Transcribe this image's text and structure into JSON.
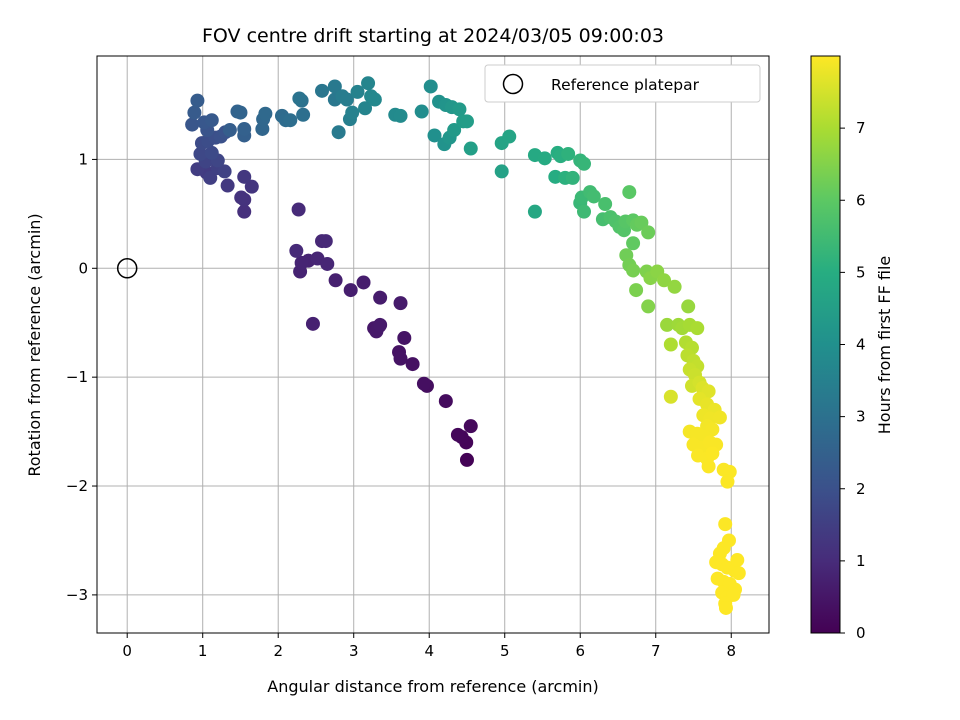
{
  "chart_data": {
    "type": "scatter",
    "title": "FOV centre drift starting at 2024/03/05 09:00:03",
    "xlabel": "Angular distance from reference (arcmin)",
    "ylabel": "Rotation from reference (arcmin)",
    "xlim": [
      -0.4,
      8.5
    ],
    "ylim": [
      -3.35,
      1.95
    ],
    "xticks": [
      0,
      1,
      2,
      3,
      4,
      5,
      6,
      7,
      8
    ],
    "yticks": [
      -3,
      -2,
      -1,
      0,
      1
    ],
    "xtick_labels": [
      "0",
      "1",
      "2",
      "3",
      "4",
      "5",
      "6",
      "7",
      "8"
    ],
    "ytick_labels": [
      "−3",
      "−2",
      "−1",
      "0",
      "1"
    ],
    "grid": true,
    "legend": {
      "label": "Reference platepar",
      "placement": "top-right"
    },
    "reference_point": {
      "x": 0,
      "y": 0
    },
    "colorbar": {
      "label": "Hours from first FF file",
      "colormap": "viridis",
      "range": [
        0,
        8
      ],
      "ticks": [
        0,
        1,
        2,
        3,
        4,
        5,
        6,
        7
      ],
      "tick_labels": [
        "0",
        "1",
        "2",
        "3",
        "4",
        "5",
        "6",
        "7"
      ]
    },
    "series": [
      {
        "points": [
          {
            "x": 4.5,
            "y": -1.76,
            "h": 0.05
          },
          {
            "x": 4.49,
            "y": -1.6,
            "h": 0.1
          },
          {
            "x": 4.43,
            "y": -1.55,
            "h": 0.12
          },
          {
            "x": 4.38,
            "y": -1.53,
            "h": 0.15
          },
          {
            "x": 4.55,
            "y": -1.45,
            "h": 0.18
          },
          {
            "x": 4.22,
            "y": -1.22,
            "h": 0.25
          },
          {
            "x": 3.97,
            "y": -1.08,
            "h": 0.3
          },
          {
            "x": 3.93,
            "y": -1.06,
            "h": 0.33
          },
          {
            "x": 3.78,
            "y": -0.88,
            "h": 0.38
          },
          {
            "x": 3.6,
            "y": -0.77,
            "h": 0.4
          },
          {
            "x": 3.62,
            "y": -0.83,
            "h": 0.42
          },
          {
            "x": 3.67,
            "y": -0.64,
            "h": 0.45
          },
          {
            "x": 3.34,
            "y": -0.53,
            "h": 0.5
          },
          {
            "x": 3.27,
            "y": -0.55,
            "h": 0.52
          },
          {
            "x": 3.3,
            "y": -0.58,
            "h": 0.55
          },
          {
            "x": 3.35,
            "y": -0.52,
            "h": 0.58
          },
          {
            "x": 3.62,
            "y": -0.32,
            "h": 0.6
          },
          {
            "x": 3.35,
            "y": -0.27,
            "h": 0.62
          },
          {
            "x": 3.13,
            "y": -0.13,
            "h": 0.65
          },
          {
            "x": 2.96,
            "y": -0.2,
            "h": 0.68
          },
          {
            "x": 2.76,
            "y": -0.11,
            "h": 0.72
          },
          {
            "x": 2.46,
            "y": -0.51,
            "h": 0.75
          },
          {
            "x": 2.29,
            "y": -0.03,
            "h": 0.78
          },
          {
            "x": 2.4,
            "y": 0.07,
            "h": 0.8
          },
          {
            "x": 2.31,
            "y": 0.05,
            "h": 0.82
          },
          {
            "x": 2.52,
            "y": 0.09,
            "h": 0.85
          },
          {
            "x": 2.65,
            "y": 0.04,
            "h": 0.88
          },
          {
            "x": 2.58,
            "y": 0.25,
            "h": 0.9
          },
          {
            "x": 2.63,
            "y": 0.25,
            "h": 0.92
          },
          {
            "x": 2.24,
            "y": 0.16,
            "h": 0.95
          },
          {
            "x": 2.27,
            "y": 0.54,
            "h": 0.98
          },
          {
            "x": 1.55,
            "y": 0.52,
            "h": 1.1
          },
          {
            "x": 1.55,
            "y": 0.63,
            "h": 1.15
          },
          {
            "x": 1.51,
            "y": 0.65,
            "h": 1.2
          },
          {
            "x": 1.65,
            "y": 0.75,
            "h": 1.25
          },
          {
            "x": 1.55,
            "y": 0.84,
            "h": 1.3
          },
          {
            "x": 1.33,
            "y": 0.76,
            "h": 1.35
          },
          {
            "x": 1.05,
            "y": 0.88,
            "h": 1.4
          },
          {
            "x": 0.93,
            "y": 0.91,
            "h": 1.45
          },
          {
            "x": 1.1,
            "y": 0.83,
            "h": 1.5
          },
          {
            "x": 1.2,
            "y": 0.92,
            "h": 1.55
          },
          {
            "x": 1.29,
            "y": 0.89,
            "h": 1.6
          },
          {
            "x": 1.04,
            "y": 0.98,
            "h": 1.65
          },
          {
            "x": 1.2,
            "y": 0.99,
            "h": 1.7
          },
          {
            "x": 0.97,
            "y": 1.05,
            "h": 1.75
          },
          {
            "x": 1.12,
            "y": 1.06,
            "h": 1.8
          },
          {
            "x": 0.99,
            "y": 1.15,
            "h": 1.85
          },
          {
            "x": 1.07,
            "y": 1.17,
            "h": 1.9
          },
          {
            "x": 1.17,
            "y": 1.2,
            "h": 1.95
          },
          {
            "x": 1.24,
            "y": 1.21,
            "h": 2.0
          },
          {
            "x": 1.3,
            "y": 1.25,
            "h": 2.05
          },
          {
            "x": 1.06,
            "y": 1.27,
            "h": 2.1
          },
          {
            "x": 0.86,
            "y": 1.32,
            "h": 2.15
          },
          {
            "x": 1.02,
            "y": 1.34,
            "h": 2.2
          },
          {
            "x": 1.12,
            "y": 1.36,
            "h": 2.25
          },
          {
            "x": 0.89,
            "y": 1.43,
            "h": 2.3
          },
          {
            "x": 0.93,
            "y": 1.54,
            "h": 2.35
          },
          {
            "x": 1.36,
            "y": 1.27,
            "h": 2.4
          },
          {
            "x": 1.55,
            "y": 1.22,
            "h": 2.45
          },
          {
            "x": 1.55,
            "y": 1.28,
            "h": 2.5
          },
          {
            "x": 1.46,
            "y": 1.44,
            "h": 2.55
          },
          {
            "x": 1.5,
            "y": 1.43,
            "h": 2.6
          },
          {
            "x": 1.79,
            "y": 1.28,
            "h": 2.65
          },
          {
            "x": 1.8,
            "y": 1.37,
            "h": 2.7
          },
          {
            "x": 1.83,
            "y": 1.42,
            "h": 2.75
          },
          {
            "x": 2.05,
            "y": 1.4,
            "h": 2.8
          },
          {
            "x": 2.1,
            "y": 1.36,
            "h": 2.85
          },
          {
            "x": 2.16,
            "y": 1.36,
            "h": 2.9
          },
          {
            "x": 2.33,
            "y": 1.41,
            "h": 2.95
          },
          {
            "x": 2.31,
            "y": 1.54,
            "h": 3.0
          },
          {
            "x": 2.28,
            "y": 1.56,
            "h": 3.05
          },
          {
            "x": 2.58,
            "y": 1.63,
            "h": 3.15
          },
          {
            "x": 2.75,
            "y": 1.55,
            "h": 3.2
          },
          {
            "x": 2.75,
            "y": 1.67,
            "h": 3.25
          },
          {
            "x": 2.8,
            "y": 1.25,
            "h": 3.3
          },
          {
            "x": 2.85,
            "y": 1.58,
            "h": 3.35
          },
          {
            "x": 2.91,
            "y": 1.55,
            "h": 3.4
          },
          {
            "x": 2.95,
            "y": 1.37,
            "h": 3.45
          },
          {
            "x": 2.98,
            "y": 1.43,
            "h": 3.5
          },
          {
            "x": 3.05,
            "y": 1.62,
            "h": 3.55
          },
          {
            "x": 3.15,
            "y": 1.47,
            "h": 3.6
          },
          {
            "x": 3.19,
            "y": 1.7,
            "h": 3.65
          },
          {
            "x": 3.23,
            "y": 1.58,
            "h": 3.7
          },
          {
            "x": 3.28,
            "y": 1.55,
            "h": 3.75
          },
          {
            "x": 3.55,
            "y": 1.41,
            "h": 3.8
          },
          {
            "x": 3.62,
            "y": 1.4,
            "h": 3.85
          },
          {
            "x": 3.9,
            "y": 1.44,
            "h": 3.9
          },
          {
            "x": 4.02,
            "y": 1.67,
            "h": 3.95
          },
          {
            "x": 4.07,
            "y": 1.22,
            "h": 4.0
          },
          {
            "x": 4.13,
            "y": 1.53,
            "h": 4.05
          },
          {
            "x": 4.2,
            "y": 1.14,
            "h": 4.1
          },
          {
            "x": 4.22,
            "y": 1.5,
            "h": 4.15
          },
          {
            "x": 4.27,
            "y": 1.2,
            "h": 4.2
          },
          {
            "x": 4.3,
            "y": 1.48,
            "h": 4.25
          },
          {
            "x": 4.33,
            "y": 1.27,
            "h": 4.3
          },
          {
            "x": 4.4,
            "y": 1.46,
            "h": 4.35
          },
          {
            "x": 4.45,
            "y": 1.35,
            "h": 4.4
          },
          {
            "x": 4.5,
            "y": 1.35,
            "h": 4.45
          },
          {
            "x": 4.55,
            "y": 1.1,
            "h": 4.5
          },
          {
            "x": 4.96,
            "y": 0.89,
            "h": 4.6
          },
          {
            "x": 4.96,
            "y": 1.15,
            "h": 4.65
          },
          {
            "x": 5.06,
            "y": 1.21,
            "h": 4.7
          },
          {
            "x": 5.4,
            "y": 0.52,
            "h": 4.8
          },
          {
            "x": 5.4,
            "y": 1.04,
            "h": 4.85
          },
          {
            "x": 5.53,
            "y": 1.01,
            "h": 4.9
          },
          {
            "x": 5.67,
            "y": 0.84,
            "h": 4.95
          },
          {
            "x": 5.7,
            "y": 1.06,
            "h": 5.0
          },
          {
            "x": 5.74,
            "y": 1.03,
            "h": 5.05
          },
          {
            "x": 5.8,
            "y": 0.83,
            "h": 5.1
          },
          {
            "x": 5.84,
            "y": 1.05,
            "h": 5.15
          },
          {
            "x": 5.9,
            "y": 0.83,
            "h": 5.2
          },
          {
            "x": 6.0,
            "y": 0.99,
            "h": 5.25
          },
          {
            "x": 6.05,
            "y": 0.96,
            "h": 5.3
          },
          {
            "x": 6.0,
            "y": 0.6,
            "h": 5.35
          },
          {
            "x": 6.02,
            "y": 0.65,
            "h": 5.4
          },
          {
            "x": 6.05,
            "y": 0.52,
            "h": 5.45
          },
          {
            "x": 6.13,
            "y": 0.7,
            "h": 5.5
          },
          {
            "x": 6.18,
            "y": 0.66,
            "h": 5.55
          },
          {
            "x": 6.3,
            "y": 0.45,
            "h": 5.6
          },
          {
            "x": 6.33,
            "y": 0.59,
            "h": 5.65
          },
          {
            "x": 6.4,
            "y": 0.47,
            "h": 5.7
          },
          {
            "x": 6.47,
            "y": 0.43,
            "h": 5.75
          },
          {
            "x": 6.52,
            "y": 0.38,
            "h": 5.8
          },
          {
            "x": 6.58,
            "y": 0.35,
            "h": 5.85
          },
          {
            "x": 6.6,
            "y": 0.43,
            "h": 5.9
          },
          {
            "x": 6.65,
            "y": 0.7,
            "h": 5.95
          },
          {
            "x": 6.7,
            "y": 0.44,
            "h": 6.0
          },
          {
            "x": 6.7,
            "y": 0.23,
            "h": 6.05
          },
          {
            "x": 6.75,
            "y": 0.4,
            "h": 6.1
          },
          {
            "x": 6.81,
            "y": 0.42,
            "h": 6.15
          },
          {
            "x": 6.9,
            "y": 0.33,
            "h": 6.2
          },
          {
            "x": 6.61,
            "y": 0.12,
            "h": 6.25
          },
          {
            "x": 6.65,
            "y": 0.03,
            "h": 6.3
          },
          {
            "x": 6.7,
            "y": -0.02,
            "h": 6.35
          },
          {
            "x": 6.74,
            "y": -0.2,
            "h": 6.4
          },
          {
            "x": 6.88,
            "y": -0.03,
            "h": 6.45
          },
          {
            "x": 6.9,
            "y": -0.35,
            "h": 6.5
          },
          {
            "x": 6.93,
            "y": -0.09,
            "h": 6.55
          },
          {
            "x": 7.02,
            "y": -0.03,
            "h": 6.6
          },
          {
            "x": 7.11,
            "y": -0.11,
            "h": 6.65
          },
          {
            "x": 7.25,
            "y": -0.17,
            "h": 6.7
          },
          {
            "x": 7.43,
            "y": -0.35,
            "h": 6.75
          },
          {
            "x": 7.15,
            "y": -0.52,
            "h": 6.8
          },
          {
            "x": 7.3,
            "y": -0.52,
            "h": 6.85
          },
          {
            "x": 7.35,
            "y": -0.55,
            "h": 6.9
          },
          {
            "x": 7.45,
            "y": -0.52,
            "h": 6.95
          },
          {
            "x": 7.55,
            "y": -0.55,
            "h": 7.0
          },
          {
            "x": 7.2,
            "y": -0.7,
            "h": 7.05
          },
          {
            "x": 7.4,
            "y": -0.68,
            "h": 7.1
          },
          {
            "x": 7.48,
            "y": -0.73,
            "h": 7.15
          },
          {
            "x": 7.42,
            "y": -0.8,
            "h": 7.2
          },
          {
            "x": 7.5,
            "y": -0.85,
            "h": 7.25
          },
          {
            "x": 7.55,
            "y": -0.9,
            "h": 7.3
          },
          {
            "x": 7.45,
            "y": -0.93,
            "h": 7.35
          },
          {
            "x": 7.52,
            "y": -0.98,
            "h": 7.4
          },
          {
            "x": 7.48,
            "y": -1.08,
            "h": 7.45
          },
          {
            "x": 7.58,
            "y": -1.05,
            "h": 7.5
          },
          {
            "x": 7.2,
            "y": -1.18,
            "h": 7.55
          },
          {
            "x": 7.62,
            "y": -1.1,
            "h": 7.6
          },
          {
            "x": 7.7,
            "y": -1.13,
            "h": 7.65
          },
          {
            "x": 7.58,
            "y": -1.2,
            "h": 7.7
          },
          {
            "x": 7.68,
            "y": -1.25,
            "h": 7.75
          },
          {
            "x": 7.78,
            "y": -1.3,
            "h": 7.8
          },
          {
            "x": 7.63,
            "y": -1.35,
            "h": 7.82
          },
          {
            "x": 7.72,
            "y": -1.38,
            "h": 7.84
          },
          {
            "x": 7.85,
            "y": -1.37,
            "h": 7.86
          },
          {
            "x": 7.68,
            "y": -1.45,
            "h": 7.88
          },
          {
            "x": 7.75,
            "y": -1.48,
            "h": 7.9
          },
          {
            "x": 7.45,
            "y": -1.5,
            "h": 7.9
          },
          {
            "x": 7.55,
            "y": -1.52,
            "h": 7.92
          },
          {
            "x": 7.65,
            "y": -1.55,
            "h": 7.92
          },
          {
            "x": 7.5,
            "y": -1.62,
            "h": 7.94
          },
          {
            "x": 7.62,
            "y": -1.65,
            "h": 7.94
          },
          {
            "x": 7.72,
            "y": -1.6,
            "h": 7.95
          },
          {
            "x": 7.8,
            "y": -1.62,
            "h": 7.95
          },
          {
            "x": 7.56,
            "y": -1.72,
            "h": 7.96
          },
          {
            "x": 7.68,
            "y": -1.75,
            "h": 7.96
          },
          {
            "x": 7.75,
            "y": -1.7,
            "h": 7.97
          },
          {
            "x": 7.7,
            "y": -1.82,
            "h": 7.97
          },
          {
            "x": 7.9,
            "y": -1.85,
            "h": 7.98
          },
          {
            "x": 7.98,
            "y": -1.87,
            "h": 7.98
          },
          {
            "x": 7.95,
            "y": -1.96,
            "h": 7.98
          },
          {
            "x": 7.92,
            "y": -2.35,
            "h": 7.99
          },
          {
            "x": 7.97,
            "y": -2.5,
            "h": 7.99
          },
          {
            "x": 7.9,
            "y": -2.57,
            "h": 7.99
          },
          {
            "x": 7.85,
            "y": -2.62,
            "h": 7.99
          },
          {
            "x": 7.8,
            "y": -2.7,
            "h": 8.0
          },
          {
            "x": 7.88,
            "y": -2.72,
            "h": 8.0
          },
          {
            "x": 7.95,
            "y": -2.75,
            "h": 8.0
          },
          {
            "x": 8.05,
            "y": -2.78,
            "h": 8.0
          },
          {
            "x": 8.08,
            "y": -2.68,
            "h": 8.0
          },
          {
            "x": 8.1,
            "y": -2.8,
            "h": 8.0
          },
          {
            "x": 7.82,
            "y": -2.85,
            "h": 8.0
          },
          {
            "x": 7.9,
            "y": -2.88,
            "h": 8.0
          },
          {
            "x": 7.98,
            "y": -2.9,
            "h": 8.0
          },
          {
            "x": 8.05,
            "y": -2.95,
            "h": 8.0
          },
          {
            "x": 7.88,
            "y": -2.98,
            "h": 8.0
          },
          {
            "x": 7.95,
            "y": -3.02,
            "h": 8.0
          },
          {
            "x": 8.03,
            "y": -3.0,
            "h": 8.0
          },
          {
            "x": 7.92,
            "y": -3.08,
            "h": 8.0
          },
          {
            "x": 7.93,
            "y": -3.12,
            "h": 8.0
          }
        ]
      }
    ]
  }
}
